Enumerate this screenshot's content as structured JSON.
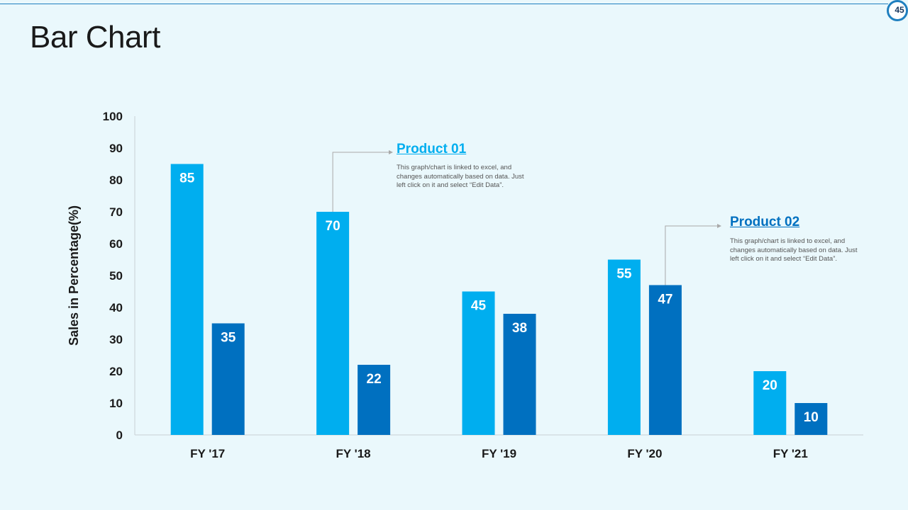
{
  "slide": {
    "title": "Bar Chart",
    "page_number": "45"
  },
  "colors": {
    "background": "#eaf8fc",
    "product_01": "#00aeef",
    "product_02": "#0070c0",
    "accent_line": "#1f7fbf",
    "callout_title_1": "#00aeef",
    "callout_title_2": "#0070c0"
  },
  "callouts": [
    {
      "title": "Product 01",
      "description": "This graph/chart is linked to excel, and changes automatically based on data. Just left click on it and select “Edit Data”."
    },
    {
      "title": "Product 02",
      "description": "This graph/chart is linked to excel, and changes automatically based on data. Just left click on it and select “Edit Data”."
    }
  ],
  "chart_data": {
    "type": "bar",
    "title": "",
    "xlabel": "",
    "ylabel": "Sales in Percentage(%)",
    "categories": [
      "FY '17",
      "FY '18",
      "FY '19",
      "FY '20",
      "FY '21"
    ],
    "series": [
      {
        "name": "Product 01",
        "values": [
          85,
          70,
          45,
          55,
          20
        ]
      },
      {
        "name": "Product 02",
        "values": [
          35,
          22,
          38,
          47,
          10
        ]
      }
    ],
    "ylim": [
      0,
      100
    ],
    "yticks": [
      "0",
      "10",
      "20",
      "30",
      "40",
      "50",
      "60",
      "70",
      "80",
      "90",
      "100"
    ],
    "grid": false,
    "legend": "none"
  }
}
